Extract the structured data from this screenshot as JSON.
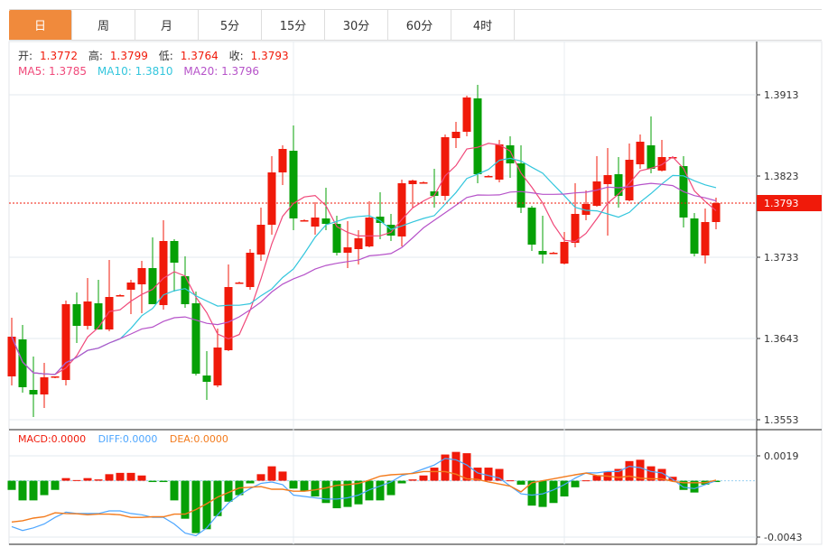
{
  "tabs": [
    {
      "label": "日",
      "active": true
    },
    {
      "label": "周"
    },
    {
      "label": "月"
    },
    {
      "label": "5分"
    },
    {
      "label": "15分"
    },
    {
      "label": "30分"
    },
    {
      "label": "60分"
    },
    {
      "label": "4时"
    }
  ],
  "ohlc_legend": {
    "open_label": "开:",
    "open": "1.3772",
    "high_label": "高:",
    "high": "1.3799",
    "low_label": "低:",
    "low": "1.3764",
    "close_label": "收:",
    "close": "1.3793"
  },
  "ma_legend": {
    "ma5": "MA5: 1.3785",
    "ma10": "MA10: 1.3810",
    "ma20": "MA20: 1.3796"
  },
  "macd_legend": {
    "macd": "MACD:0.0000",
    "diff": "DIFF:0.0000",
    "dea": "DEA:0.0000"
  },
  "current_price": "1.3793",
  "colors": {
    "up": "#f01a0a",
    "down": "#06a006",
    "ma5": "#f0497a",
    "ma10": "#33c6dd",
    "ma20": "#b653c9",
    "diff": "#4da6ff",
    "dea": "#f37b1d",
    "tab_active": "#f08a3c"
  },
  "chart_data": [
    {
      "type": "candlestick",
      "y_ticks": [
        "1.3913",
        "1.3823",
        "1.3733",
        "1.3643",
        "1.3553"
      ],
      "ylim": [
        1.3553,
        1.3913
      ],
      "candles": [
        [
          1.3601,
          1.3666,
          1.3591,
          1.3645
        ],
        [
          1.3642,
          1.3658,
          1.3583,
          1.3589
        ],
        [
          1.3586,
          1.3623,
          1.3556,
          1.3581
        ],
        [
          1.3581,
          1.3616,
          1.3566,
          1.36
        ],
        [
          1.36,
          1.3601,
          1.3599,
          1.3601
        ],
        [
          1.3597,
          1.3685,
          1.3591,
          1.3681
        ],
        [
          1.3681,
          1.3694,
          1.3638,
          1.3657
        ],
        [
          1.3657,
          1.371,
          1.3653,
          1.3684
        ],
        [
          1.3682,
          1.3708,
          1.3653,
          1.3653
        ],
        [
          1.3653,
          1.373,
          1.3651,
          1.3689
        ],
        [
          1.3691,
          1.3692,
          1.369,
          1.3691
        ],
        [
          1.3697,
          1.3708,
          1.367,
          1.3705
        ],
        [
          1.3703,
          1.3729,
          1.3671,
          1.3721
        ],
        [
          1.3721,
          1.3755,
          1.3681,
          1.3681
        ],
        [
          1.368,
          1.3774,
          1.3675,
          1.3751
        ],
        [
          1.3751,
          1.3753,
          1.3695,
          1.3727
        ],
        [
          1.3712,
          1.3734,
          1.3677,
          1.3681
        ],
        [
          1.3682,
          1.3695,
          1.3602,
          1.3604
        ],
        [
          1.3602,
          1.3629,
          1.3575,
          1.3595
        ],
        [
          1.3591,
          1.3654,
          1.3589,
          1.3633
        ],
        [
          1.363,
          1.3725,
          1.3629,
          1.37
        ],
        [
          1.3705,
          1.3706,
          1.3704,
          1.3705
        ],
        [
          1.37,
          1.3742,
          1.3697,
          1.3738
        ],
        [
          1.3736,
          1.3788,
          1.3729,
          1.3769
        ],
        [
          1.3769,
          1.3845,
          1.3758,
          1.3827
        ],
        [
          1.3827,
          1.3857,
          1.3813,
          1.3853
        ],
        [
          1.3851,
          1.3879,
          1.3763,
          1.3776
        ],
        [
          1.3774,
          1.3775,
          1.3773,
          1.3774
        ],
        [
          1.3767,
          1.3794,
          1.3758,
          1.3777
        ],
        [
          1.3776,
          1.381,
          1.3763,
          1.377
        ],
        [
          1.377,
          1.3779,
          1.3735,
          1.3738
        ],
        [
          1.3738,
          1.3773,
          1.3721,
          1.3744
        ],
        [
          1.3742,
          1.3763,
          1.3725,
          1.3754
        ],
        [
          1.3745,
          1.3795,
          1.3744,
          1.3777
        ],
        [
          1.3778,
          1.3805,
          1.3753,
          1.3771
        ],
        [
          1.3769,
          1.3781,
          1.3751,
          1.3757
        ],
        [
          1.3756,
          1.3819,
          1.3745,
          1.3815
        ],
        [
          1.3814,
          1.3819,
          1.3788,
          1.3818
        ],
        [
          1.3816,
          1.3817,
          1.3815,
          1.3816
        ],
        [
          1.3806,
          1.3831,
          1.3788,
          1.3801
        ],
        [
          1.3801,
          1.3869,
          1.3796,
          1.3866
        ],
        [
          1.3865,
          1.3883,
          1.3854,
          1.3872
        ],
        [
          1.3872,
          1.3912,
          1.3867,
          1.391
        ],
        [
          1.3909,
          1.3924,
          1.3815,
          1.3825
        ],
        [
          1.3823,
          1.3824,
          1.3822,
          1.3823
        ],
        [
          1.3819,
          1.3863,
          1.3816,
          1.3858
        ],
        [
          1.3857,
          1.3867,
          1.3821,
          1.3837
        ],
        [
          1.3837,
          1.3857,
          1.3782,
          1.3788
        ],
        [
          1.3788,
          1.379,
          1.374,
          1.3747
        ],
        [
          1.374,
          1.3779,
          1.3726,
          1.3736
        ],
        [
          1.3738,
          1.3739,
          1.3737,
          1.3738
        ],
        [
          1.3726,
          1.3761,
          1.3725,
          1.375
        ],
        [
          1.3749,
          1.3815,
          1.3744,
          1.3781
        ],
        [
          1.378,
          1.3807,
          1.3774,
          1.3792
        ],
        [
          1.379,
          1.3845,
          1.3789,
          1.3817
        ],
        [
          1.3814,
          1.3854,
          1.3757,
          1.3824
        ],
        [
          1.3825,
          1.3844,
          1.3788,
          1.3801
        ],
        [
          1.3796,
          1.3859,
          1.3795,
          1.3841
        ],
        [
          1.3836,
          1.3869,
          1.3831,
          1.3861
        ],
        [
          1.3857,
          1.3889,
          1.3826,
          1.3831
        ],
        [
          1.3829,
          1.3863,
          1.3828,
          1.3844
        ],
        [
          1.3844,
          1.3845,
          1.3843,
          1.3844
        ],
        [
          1.3834,
          1.3845,
          1.3766,
          1.3777
        ],
        [
          1.3776,
          1.3782,
          1.3734,
          1.3737
        ],
        [
          1.3735,
          1.3787,
          1.3726,
          1.3772
        ],
        [
          1.3772,
          1.3799,
          1.3764,
          1.3793
        ]
      ]
    },
    {
      "type": "bar",
      "y_ticks": [
        "0.0019",
        "-0.0043"
      ],
      "ylim": [
        -0.0043,
        0.0019
      ],
      "macd_hist": [
        -0.0007,
        -0.0015,
        -0.0015,
        -0.0011,
        -0.0007,
        0.0002,
        5e-05,
        0.0002,
        0.0001,
        0.0005,
        0.0006,
        0.0006,
        0.0004,
        -0.0001,
        -0.0001,
        -0.0015,
        -0.0029,
        -0.004,
        -0.0037,
        -0.0027,
        -0.0016,
        -0.0011,
        -0.0002,
        0.0005,
        0.0011,
        0.0007,
        -0.0006,
        -0.0008,
        -0.0012,
        -0.0017,
        -0.0021,
        -0.002,
        -0.0018,
        -0.0015,
        -0.0015,
        -0.0011,
        -0.0002,
        0.0001,
        0.0004,
        0.001,
        0.002,
        0.0022,
        0.0021,
        0.001,
        0.001,
        0.0009,
        3e-05,
        -0.0003,
        -0.0019,
        -0.002,
        -0.0017,
        -0.0012,
        -0.0005,
        3e-05,
        0.0004,
        0.0007,
        0.0009,
        0.0015,
        0.0016,
        0.0011,
        0.0009,
        0.0003,
        -0.0007,
        -0.0009,
        -0.0003,
        -0.0001
      ],
      "diff": [
        -0.0035,
        -0.0038,
        -0.0036,
        -0.0033,
        -0.0028,
        -0.0024,
        -0.0025,
        -0.0025,
        -0.0025,
        -0.0023,
        -0.0023,
        -0.0025,
        -0.0026,
        -0.0028,
        -0.0028,
        -0.0033,
        -0.004,
        -0.0042,
        -0.0036,
        -0.0026,
        -0.0017,
        -0.0011,
        -0.0006,
        -0.0002,
        -0.0001,
        -0.0003,
        -0.0011,
        -0.0012,
        -0.0013,
        -0.0014,
        -0.0014,
        -0.0013,
        -0.0011,
        -0.0007,
        -0.0004,
        -0.0001,
        0.0004,
        0.0006,
        0.0009,
        0.0012,
        0.0017,
        0.0016,
        0.0012,
        0.0006,
        0.0004,
        0.0002,
        -0.0004,
        -0.001,
        -0.0011,
        -0.001,
        -0.0007,
        -0.0003,
        0.0002,
        0.0006,
        0.0006,
        0.0007,
        0.0007,
        0.0011,
        0.001,
        0.0007,
        0.0006,
        0.0001,
        -0.0005,
        -0.0006,
        -0.0003,
        0.0
      ]
    }
  ]
}
